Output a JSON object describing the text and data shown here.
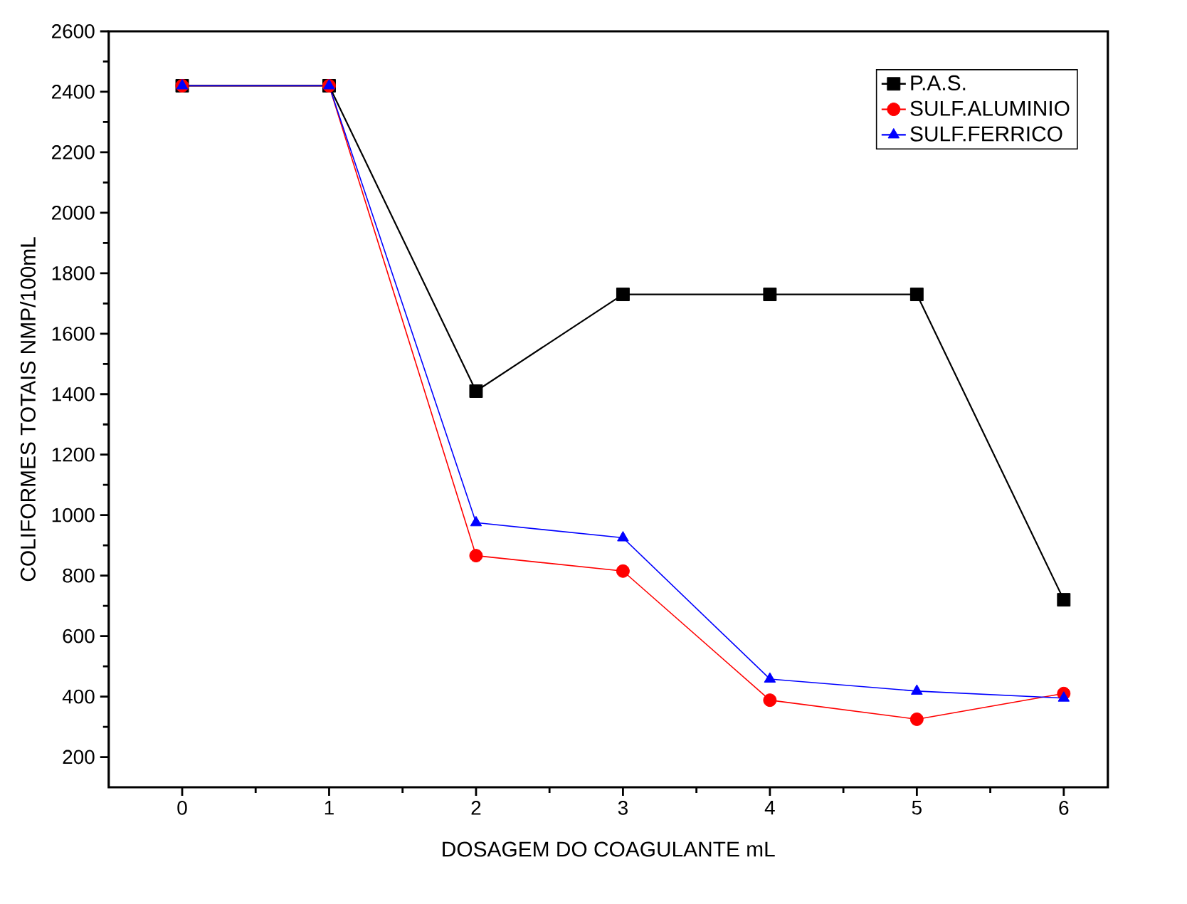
{
  "chart_data": {
    "type": "line",
    "xlabel": "DOSAGEM DO COAGULANTE mL",
    "ylabel": "COLIFORMES TOTAIS NMP/100mL",
    "x": [
      0,
      1,
      2,
      3,
      4,
      5,
      6
    ],
    "xlim": [
      -0.5,
      6.3
    ],
    "xticks": [
      0,
      1,
      2,
      3,
      4,
      5,
      6
    ],
    "ylim": [
      100,
      2600
    ],
    "yticks": [
      200,
      400,
      600,
      800,
      1000,
      1200,
      1400,
      1600,
      1800,
      2000,
      2200,
      2400,
      2600
    ],
    "legend": "top right",
    "grid": false,
    "series": [
      {
        "name": "P.A.S.",
        "color": "#000000",
        "marker": "square",
        "values": [
          2420,
          2420,
          1410,
          1730,
          1730,
          1730,
          720
        ]
      },
      {
        "name": "SULF.ALUMINIO",
        "color": "#ff0000",
        "marker": "circle",
        "values": [
          2420,
          2420,
          866,
          815,
          388,
          325,
          410
        ]
      },
      {
        "name": "SULF.FERRICO",
        "color": "#0000ff",
        "marker": "triangle",
        "values": [
          2420,
          2420,
          975,
          925,
          458,
          418,
          395
        ]
      }
    ]
  }
}
